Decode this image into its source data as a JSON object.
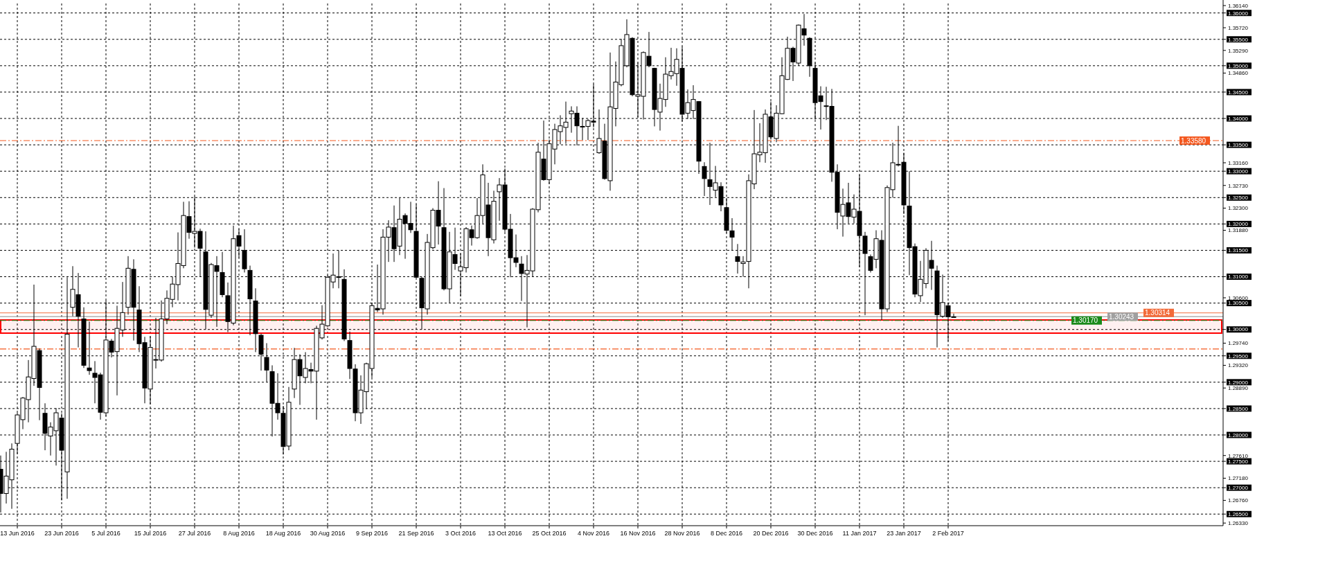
{
  "chart_data": {
    "type": "candlestick",
    "categories": [
      null,
      null,
      null,
      "13 Jun 2016",
      null,
      null,
      null,
      null,
      null,
      null,
      null,
      "23 Jun 2016",
      null,
      null,
      null,
      null,
      null,
      null,
      null,
      "5 Jul 2016",
      null,
      null,
      null,
      null,
      null,
      null,
      null,
      "15 Jul 2016",
      null,
      null,
      null,
      null,
      null,
      null,
      null,
      "27 Jul 2016",
      null,
      null,
      null,
      null,
      null,
      null,
      null,
      "8 Aug 2016",
      null,
      null,
      null,
      null,
      null,
      null,
      null,
      "18 Aug 2016",
      null,
      null,
      null,
      null,
      null,
      null,
      null,
      "30 Aug 2016",
      null,
      null,
      null,
      null,
      null,
      null,
      null,
      "9 Sep 2016",
      null,
      null,
      null,
      null,
      null,
      null,
      null,
      "21 Sep 2016",
      null,
      null,
      null,
      null,
      null,
      null,
      null,
      "3 Oct 2016",
      null,
      null,
      null,
      null,
      null,
      null,
      null,
      "13 Oct 2016",
      null,
      null,
      null,
      null,
      null,
      null,
      null,
      "25 Oct 2016",
      null,
      null,
      null,
      null,
      null,
      null,
      null,
      "4 Nov 2016",
      null,
      null,
      null,
      null,
      null,
      null,
      null,
      "16 Nov 2016",
      null,
      null,
      null,
      null,
      null,
      null,
      null,
      "28 Nov 2016",
      null,
      null,
      null,
      null,
      null,
      null,
      null,
      "8 Dec 2016",
      null,
      null,
      null,
      null,
      null,
      null,
      null,
      "20 Dec 2016",
      null,
      null,
      null,
      null,
      null,
      null,
      null,
      "30 Dec 2016",
      null,
      null,
      null,
      null,
      null,
      null,
      null,
      "11 Jan 2017",
      null,
      null,
      null,
      null,
      null,
      null,
      null,
      "23 Jan 2017",
      null,
      null,
      null,
      null,
      null,
      null,
      null,
      "2 Feb 2017",
      null,
      null,
      null,
      null,
      null,
      null,
      null,
      null,
      null,
      null,
      null,
      null,
      null,
      null,
      null,
      null,
      null,
      null,
      null,
      null,
      null,
      null,
      null,
      null,
      null,
      null,
      null,
      null,
      null,
      null,
      null,
      null,
      null,
      null,
      null,
      null,
      null,
      null,
      null,
      null,
      null,
      null,
      null,
      null,
      null,
      null,
      null,
      null,
      null
    ],
    "ohlc": [
      [
        1.2735,
        1.2761,
        1.2653,
        1.2689
      ],
      [
        1.2689,
        1.2768,
        1.267,
        1.2722
      ],
      [
        1.2715,
        1.2784,
        1.266,
        1.2773
      ],
      [
        1.2784,
        1.2842,
        1.2764,
        1.2838
      ],
      [
        1.2829,
        1.2872,
        1.2811,
        1.287
      ],
      [
        1.2867,
        1.2942,
        1.2824,
        1.291
      ],
      [
        1.2907,
        1.3085,
        1.2893,
        1.2968
      ],
      [
        1.296,
        1.2964,
        1.2828,
        1.289
      ],
      [
        1.2841,
        1.286,
        1.2771,
        1.2803
      ],
      [
        1.2798,
        1.2824,
        1.2761,
        1.2815
      ],
      [
        1.2808,
        1.2851,
        1.2742,
        1.2842
      ],
      [
        1.2832,
        1.2841,
        1.2676,
        1.2771
      ],
      [
        1.273,
        1.3099,
        1.2679,
        1.2991
      ],
      [
        1.3042,
        1.312,
        1.3025,
        1.3076
      ],
      [
        1.3066,
        1.3107,
        1.2966,
        1.3025
      ],
      [
        1.302,
        1.3042,
        1.2927,
        1.2932
      ],
      [
        1.2927,
        1.3015,
        1.2914,
        1.2922
      ],
      [
        1.2917,
        1.294,
        1.286,
        1.2909
      ],
      [
        1.2914,
        1.2918,
        1.2829,
        1.2843
      ],
      [
        1.2842,
        1.3055,
        1.2836,
        1.298
      ],
      [
        1.2978,
        1.2982,
        1.2947,
        1.2957
      ],
      [
        1.2958,
        1.3045,
        1.2875,
        1.3002
      ],
      [
        1.2999,
        1.309,
        1.2986,
        1.3032
      ],
      [
        1.3042,
        1.3139,
        1.3028,
        1.3116
      ],
      [
        1.3114,
        1.3133,
        1.2979,
        1.3042
      ],
      [
        1.3037,
        1.3082,
        1.2957,
        1.2973
      ],
      [
        1.2975,
        1.2986,
        1.286,
        1.2889
      ],
      [
        1.2887,
        1.2987,
        1.2858,
        1.2966
      ],
      [
        1.2943,
        1.3022,
        1.2926,
        1.2943
      ],
      [
        1.2942,
        1.3055,
        1.2939,
        1.302
      ],
      [
        1.302,
        1.3074,
        1.301,
        1.3059
      ],
      [
        1.3057,
        1.31,
        1.3042,
        1.3086
      ],
      [
        1.3085,
        1.3184,
        1.3055,
        1.3125
      ],
      [
        1.3121,
        1.3242,
        1.3116,
        1.3216
      ],
      [
        1.3214,
        1.3243,
        1.3172,
        1.3184
      ],
      [
        1.3182,
        1.3252,
        1.3155,
        1.3186
      ],
      [
        1.3186,
        1.3191,
        1.31,
        1.3154
      ],
      [
        1.3147,
        1.3186,
        1.3,
        1.3038
      ],
      [
        1.3027,
        1.3126,
        1.3022,
        1.3123
      ],
      [
        1.3121,
        1.3139,
        1.3005,
        1.311
      ],
      [
        1.3108,
        1.3147,
        1.3061,
        1.3066
      ],
      [
        1.3064,
        1.3089,
        1.2995,
        1.3015
      ],
      [
        1.3012,
        1.3197,
        1.3008,
        1.3172
      ],
      [
        1.3178,
        1.319,
        1.3136,
        1.3158
      ],
      [
        1.315,
        1.319,
        1.3108,
        1.3115
      ],
      [
        1.3112,
        1.3121,
        1.2989,
        1.3058
      ],
      [
        1.3054,
        1.3078,
        1.2957,
        1.2992
      ],
      [
        1.2989,
        1.2992,
        1.2922,
        1.2953
      ],
      [
        1.2947,
        1.2974,
        1.2901,
        1.2923
      ],
      [
        1.292,
        1.2932,
        1.2797,
        1.286
      ],
      [
        1.286,
        1.2917,
        1.2829,
        1.2842
      ],
      [
        1.2841,
        1.2855,
        1.2763,
        1.2778
      ],
      [
        1.2779,
        1.2891,
        1.2771,
        1.2862
      ],
      [
        1.2887,
        1.2965,
        1.287,
        1.2943
      ],
      [
        1.2943,
        1.2953,
        1.2857,
        1.2912
      ],
      [
        1.2909,
        1.2957,
        1.2898,
        1.2926
      ],
      [
        1.2924,
        1.2937,
        1.2898,
        1.2921
      ],
      [
        1.2921,
        1.3007,
        1.2829,
        1.3002
      ],
      [
        1.2984,
        1.3046,
        1.2981,
        1.301
      ],
      [
        1.3007,
        1.3103,
        1.3005,
        1.3099
      ],
      [
        1.309,
        1.3144,
        1.3078,
        1.3103
      ],
      [
        1.31,
        1.315,
        1.3078,
        1.31
      ],
      [
        1.3095,
        1.3114,
        1.2978,
        1.2982
      ],
      [
        1.2979,
        1.2996,
        1.2906,
        1.2926
      ],
      [
        1.2925,
        1.2934,
        1.2826,
        1.2842
      ],
      [
        1.2842,
        1.2913,
        1.2821,
        1.2885
      ],
      [
        1.2882,
        1.2937,
        1.2849,
        1.2935
      ],
      [
        1.2926,
        1.3051,
        1.2909,
        1.3045
      ],
      [
        1.304,
        1.3123,
        1.3033,
        1.3037
      ],
      [
        1.3039,
        1.319,
        1.3028,
        1.3175
      ],
      [
        1.3175,
        1.3207,
        1.3128,
        1.3194
      ],
      [
        1.3193,
        1.3235,
        1.3128,
        1.3153
      ],
      [
        1.3158,
        1.3249,
        1.3141,
        1.3209
      ],
      [
        1.3216,
        1.322,
        1.3134,
        1.3201
      ],
      [
        1.3201,
        1.3242,
        1.3183,
        1.3189
      ],
      [
        1.3186,
        1.3237,
        1.3098,
        1.3099
      ],
      [
        1.3097,
        1.31,
        1.3,
        1.3041
      ],
      [
        1.3039,
        1.3181,
        1.3028,
        1.3165
      ],
      [
        1.3155,
        1.323,
        1.3152,
        1.3226
      ],
      [
        1.3226,
        1.3281,
        1.3161,
        1.3196
      ],
      [
        1.3193,
        1.3268,
        1.3074,
        1.3077
      ],
      [
        1.3077,
        1.3185,
        1.3051,
        1.3147
      ],
      [
        1.3142,
        1.3193,
        1.3113,
        1.3125
      ],
      [
        1.3111,
        1.3144,
        1.3063,
        1.3119
      ],
      [
        1.3117,
        1.3194,
        1.3108,
        1.3191
      ],
      [
        1.3189,
        1.3197,
        1.3159,
        1.3174
      ],
      [
        1.3174,
        1.3249,
        1.3172,
        1.3216
      ],
      [
        1.3216,
        1.3313,
        1.3201,
        1.3293
      ],
      [
        1.3236,
        1.3278,
        1.3139,
        1.3174
      ],
      [
        1.317,
        1.3263,
        1.3163,
        1.3243
      ],
      [
        1.3261,
        1.3287,
        1.3206,
        1.3274
      ],
      [
        1.3274,
        1.3305,
        1.3185,
        1.319
      ],
      [
        1.319,
        1.3219,
        1.3099,
        1.3136
      ],
      [
        1.3136,
        1.318,
        1.3118,
        1.3127
      ],
      [
        1.3124,
        1.3139,
        1.3054,
        1.3106
      ],
      [
        1.3105,
        1.3141,
        1.3004,
        1.3112
      ],
      [
        1.3111,
        1.323,
        1.31,
        1.3228
      ],
      [
        1.3227,
        1.3354,
        1.3222,
        1.3336
      ],
      [
        1.3323,
        1.3396,
        1.3282,
        1.3284
      ],
      [
        1.3284,
        1.336,
        1.3276,
        1.3352
      ],
      [
        1.3342,
        1.339,
        1.3313,
        1.3379
      ],
      [
        1.3375,
        1.3406,
        1.3351,
        1.3386
      ],
      [
        1.3383,
        1.3432,
        1.3352,
        1.3393
      ],
      [
        1.3409,
        1.3423,
        1.3373,
        1.3414
      ],
      [
        1.341,
        1.3423,
        1.3349,
        1.3386
      ],
      [
        1.3385,
        1.3401,
        1.3359,
        1.3385
      ],
      [
        1.3385,
        1.3399,
        1.3359,
        1.3396
      ],
      [
        1.3395,
        1.3465,
        1.3383,
        1.3393
      ],
      [
        1.3335,
        1.3417,
        1.3333,
        1.3362
      ],
      [
        1.3357,
        1.339,
        1.3284,
        1.3286
      ],
      [
        1.3282,
        1.3525,
        1.3263,
        1.3422
      ],
      [
        1.3419,
        1.3508,
        1.3385,
        1.3469
      ],
      [
        1.3464,
        1.3551,
        1.3461,
        1.3538
      ],
      [
        1.35,
        1.3588,
        1.3497,
        1.3559
      ],
      [
        1.3552,
        1.3554,
        1.3442,
        1.3445
      ],
      [
        1.3442,
        1.3506,
        1.3402,
        1.3445
      ],
      [
        1.3442,
        1.3527,
        1.3398,
        1.3525
      ],
      [
        1.3518,
        1.3564,
        1.3497,
        1.35
      ],
      [
        1.3495,
        1.3496,
        1.3385,
        1.3417
      ],
      [
        1.3412,
        1.3466,
        1.3377,
        1.3438
      ],
      [
        1.3436,
        1.3516,
        1.3422,
        1.3484
      ],
      [
        1.3481,
        1.3534,
        1.3474,
        1.3489
      ],
      [
        1.3485,
        1.3533,
        1.3462,
        1.3512
      ],
      [
        1.3495,
        1.3536,
        1.3394,
        1.3408
      ],
      [
        1.341,
        1.3455,
        1.3399,
        1.343
      ],
      [
        1.3415,
        1.3463,
        1.3399,
        1.3436
      ],
      [
        1.3432,
        1.3433,
        1.3295,
        1.3319
      ],
      [
        1.3309,
        1.3317,
        1.3253,
        1.3286
      ],
      [
        1.3284,
        1.3354,
        1.3236,
        1.3271
      ],
      [
        1.3264,
        1.331,
        1.3251,
        1.3278
      ],
      [
        1.3271,
        1.3279,
        1.3224,
        1.3236
      ],
      [
        1.3231,
        1.3249,
        1.3183,
        1.3188
      ],
      [
        1.3187,
        1.3211,
        1.315,
        1.3175
      ],
      [
        1.3138,
        1.3162,
        1.3106,
        1.3129
      ],
      [
        1.3125,
        1.3139,
        1.31,
        1.3128
      ],
      [
        1.3129,
        1.3294,
        1.3078,
        1.3282
      ],
      [
        1.3276,
        1.3416,
        1.3266,
        1.3333
      ],
      [
        1.3331,
        1.3391,
        1.3317,
        1.3336
      ],
      [
        1.3335,
        1.3417,
        1.3316,
        1.3408
      ],
      [
        1.3403,
        1.3432,
        1.336,
        1.3365
      ],
      [
        1.3362,
        1.3425,
        1.3355,
        1.341
      ],
      [
        1.3409,
        1.3516,
        1.3408,
        1.3481
      ],
      [
        1.3474,
        1.3555,
        1.3473,
        1.3533
      ],
      [
        1.3533,
        1.3536,
        1.3471,
        1.3507
      ],
      [
        1.3505,
        1.3578,
        1.35,
        1.3577
      ],
      [
        1.357,
        1.3598,
        1.3538,
        1.3558
      ],
      [
        1.3552,
        1.3554,
        1.3479,
        1.35
      ],
      [
        1.3495,
        1.3506,
        1.3398,
        1.343
      ],
      [
        1.3443,
        1.3461,
        1.3379,
        1.3432
      ],
      [
        1.3424,
        1.346,
        1.3397,
        1.3424
      ],
      [
        1.3423,
        1.3456,
        1.328,
        1.3298
      ],
      [
        1.3298,
        1.3313,
        1.319,
        1.3222
      ],
      [
        1.3215,
        1.3267,
        1.3176,
        1.3237
      ],
      [
        1.324,
        1.3278,
        1.3201,
        1.3214
      ],
      [
        1.3213,
        1.3256,
        1.3201,
        1.3228
      ],
      [
        1.3224,
        1.3293,
        1.3118,
        1.3178
      ],
      [
        1.3177,
        1.3185,
        1.3027,
        1.3144
      ],
      [
        1.3138,
        1.3142,
        1.3108,
        1.3112
      ],
      [
        1.3133,
        1.3188,
        1.3116,
        1.3172
      ],
      [
        1.3169,
        1.3188,
        1.3018,
        1.3039
      ],
      [
        1.3039,
        1.3273,
        1.3033,
        1.3269
      ],
      [
        1.3265,
        1.3354,
        1.325,
        1.3316
      ],
      [
        1.3313,
        1.3386,
        1.3309,
        1.3313
      ],
      [
        1.3317,
        1.3335,
        1.3219,
        1.3236
      ],
      [
        1.3234,
        1.33,
        1.3103,
        1.3155
      ],
      [
        1.3157,
        1.3163,
        1.3061,
        1.3067
      ],
      [
        1.3064,
        1.313,
        1.3052,
        1.3095
      ],
      [
        1.3087,
        1.3154,
        1.3078,
        1.315
      ],
      [
        1.3131,
        1.3168,
        1.3075,
        1.3116
      ],
      [
        1.3111,
        1.3121,
        1.2966,
        1.3028
      ],
      [
        1.3025,
        1.3104,
        1.3022,
        1.3051
      ],
      [
        1.3045,
        1.3051,
        1.2978,
        1.3024
      ],
      [
        1.3024,
        1.303,
        1.3023,
        1.3024
      ],
      null,
      null,
      null,
      null,
      null,
      null,
      null,
      null,
      null,
      null,
      null,
      null,
      null,
      null,
      null,
      null,
      null,
      null,
      null,
      null,
      null,
      null,
      null,
      null,
      null,
      null,
      null,
      null,
      null,
      null,
      null,
      null,
      null,
      null,
      null,
      null,
      null,
      null,
      null,
      null,
      null,
      null,
      null,
      null,
      null,
      null,
      null,
      null
    ],
    "ylim": [
      1.2628,
      1.3618
    ],
    "yticks": [
      {
        "value": 1.265,
        "label": "1.26500"
      },
      {
        "value": 1.27,
        "label": "1.27000"
      },
      {
        "value": 1.275,
        "label": "1.27500"
      },
      {
        "value": 1.28,
        "label": "1.28000"
      },
      {
        "value": 1.285,
        "label": "1.28500"
      },
      {
        "value": 1.29,
        "label": "1.29000"
      },
      {
        "value": 1.295,
        "label": "1.29500"
      },
      {
        "value": 1.3,
        "label": "1.30000"
      },
      {
        "value": 1.305,
        "label": "1.30500"
      },
      {
        "value": 1.31,
        "label": "1.31000"
      },
      {
        "value": 1.315,
        "label": "1.31500"
      },
      {
        "value": 1.32,
        "label": "1.32000"
      },
      {
        "value": 1.325,
        "label": "1.32500"
      },
      {
        "value": 1.33,
        "label": "1.33000"
      },
      {
        "value": 1.335,
        "label": "1.33500"
      },
      {
        "value": 1.34,
        "label": "1.34000"
      },
      {
        "value": 1.345,
        "label": "1.34500"
      },
      {
        "value": 1.35,
        "label": "1.35000"
      },
      {
        "value": 1.355,
        "label": "1.35500"
      },
      {
        "value": 1.36,
        "label": "1.36000"
      },
      {
        "value": 1.2633,
        "label": "1.26330"
      },
      {
        "value": 1.2676,
        "label": "1.26760"
      },
      {
        "value": 1.2718,
        "label": "1.27180"
      },
      {
        "value": 1.2761,
        "label": "1.27610"
      },
      {
        "value": 1.2889,
        "label": "1.28890"
      },
      {
        "value": 1.2932,
        "label": "1.29320"
      },
      {
        "value": 1.2974,
        "label": "1.29740"
      },
      {
        "value": 1.306,
        "label": "1.30600"
      },
      {
        "value": 1.3188,
        "label": "1.31880"
      },
      {
        "value": 1.323,
        "label": "1.32300"
      },
      {
        "value": 1.3273,
        "label": "1.32730"
      },
      {
        "value": 1.3316,
        "label": "1.33160"
      },
      {
        "value": 1.3486,
        "label": "1.34860"
      },
      {
        "value": 1.3529,
        "label": "1.35290"
      },
      {
        "value": 1.3572,
        "label": "1.35720"
      },
      {
        "value": 1.3614,
        "label": "1.36140"
      }
    ],
    "grid": true,
    "ref_lines": [
      {
        "axis": "y",
        "value": 1.3358,
        "label": "1.33580",
        "color": "#f4581f",
        "line_style": "dashed"
      },
      {
        "axis": "y",
        "value": 1.30314,
        "label": "1.30314",
        "color": "#f26b3a",
        "line_style": "solid"
      },
      {
        "axis": "y",
        "value": 1.30243,
        "label": "1.30243",
        "color": "#a0a0a0",
        "line_style": "solid"
      },
      {
        "axis": "y",
        "value": 1.3017,
        "label": "1.30170",
        "color": "#1a8a1a",
        "line_style": "dashed"
      },
      {
        "axis": "y",
        "value": 1.2963,
        "label": null,
        "color": "#f4581f",
        "line_style": "dashed"
      }
    ],
    "bands": [
      {
        "axis": "y",
        "from": 1.2993,
        "to": 1.3018,
        "color": "#ff0000"
      }
    ]
  }
}
